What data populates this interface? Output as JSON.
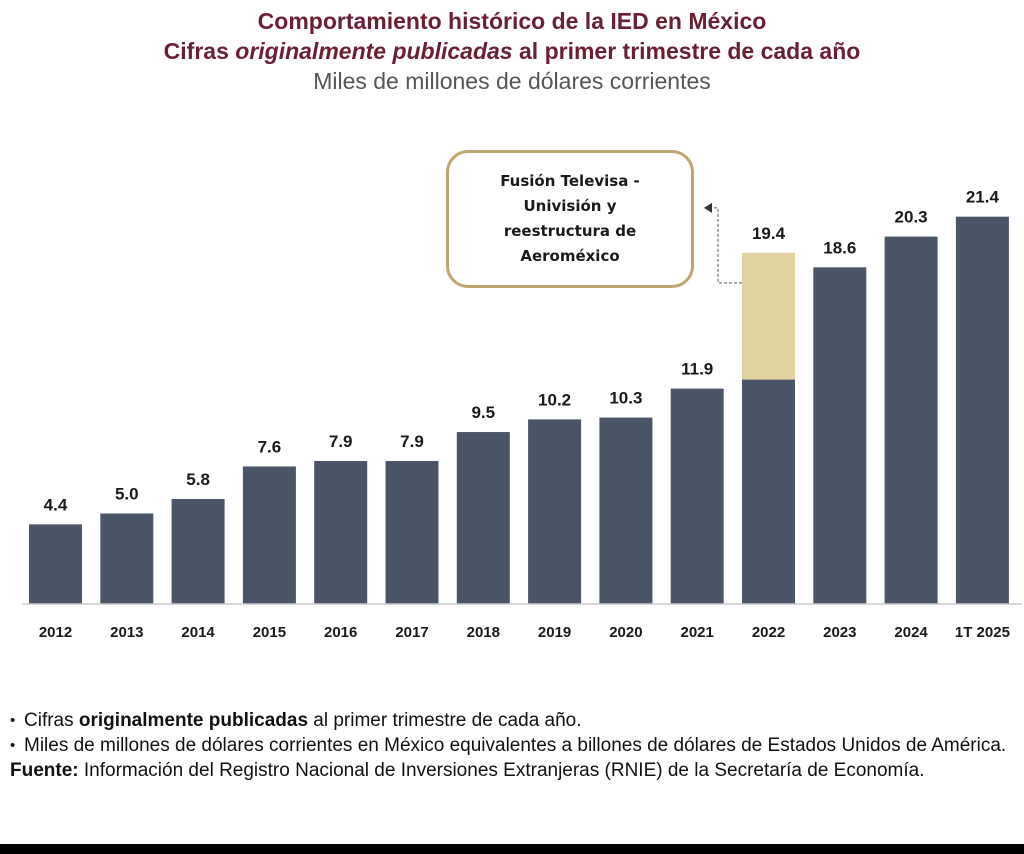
{
  "title_line1": "Comportamiento histórico de la IED en México",
  "title_line2": {
    "part1": "Cifras ",
    "emph": "originalmente publicadas",
    "part2": " al primer trimestre de cada año"
  },
  "subtitle": "Miles de millones de dólares corrientes",
  "chart_data": {
    "type": "bar",
    "categories": [
      "2012",
      "2013",
      "2014",
      "2015",
      "2016",
      "2017",
      "2018",
      "2019",
      "2020",
      "2021",
      "2022",
      "2023",
      "2024",
      "1T 2025"
    ],
    "values": [
      4.4,
      5.0,
      5.8,
      7.6,
      7.9,
      7.9,
      9.5,
      10.2,
      10.3,
      11.9,
      19.4,
      18.6,
      20.3,
      21.4
    ],
    "value_labels": [
      "4.4",
      "5.0",
      "5.8",
      "7.6",
      "7.9",
      "7.9",
      "9.5",
      "10.2",
      "10.3",
      "11.9",
      "19.4",
      "18.6",
      "20.3",
      "21.4"
    ],
    "stacked_highlight": {
      "category": "2022",
      "base": 12.4,
      "top": 19.4
    },
    "annotation": "Fusión Televisa - Univisión y reestructura de Aeroméxico",
    "ylim": [
      0,
      22
    ],
    "grid": false,
    "colors": {
      "bar": "#4a5568",
      "highlight": "#e2d29f",
      "annotation_border": "#c0a56e"
    }
  },
  "notes": {
    "bullet_glyph": "•",
    "item1_pre": "Cifras ",
    "item1_bold": "originalmente publicadas",
    "item1_post": " al primer trimestre de cada año.",
    "item2": "Miles de millones de dólares corrientes en México equivalentes a billones de dólares de Estados Unidos de América.",
    "source_label": "Fuente:",
    "source_text": " Información del Registro Nacional de Inversiones Extranjeras (RNIE) de la Secretaría de Economía."
  }
}
